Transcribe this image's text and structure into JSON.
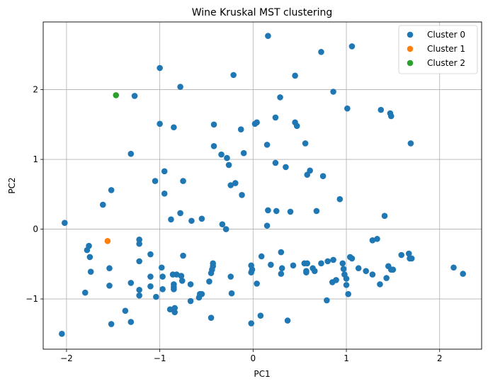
{
  "chart_data": {
    "type": "scatter",
    "title": "Wine Kruskal MST clustering",
    "xlabel": "PC1",
    "ylabel": "PC2",
    "xlim": [
      -2.25,
      2.45
    ],
    "ylim": [
      -1.72,
      2.97
    ],
    "xticks": [
      -2,
      -1,
      0,
      1,
      2
    ],
    "yticks": [
      -1,
      0,
      1,
      2
    ],
    "xtick_labels": [
      "−2",
      "−1",
      "0",
      "1",
      "2"
    ],
    "ytick_labels": [
      "−1",
      "0",
      "1",
      "2"
    ],
    "grid": true,
    "legend_position": "top-right",
    "series": [
      {
        "name": "Cluster 0",
        "color": "#1f77b4",
        "points": [
          [
            0.16,
            2.77
          ],
          [
            1.06,
            2.62
          ],
          [
            0.73,
            2.54
          ],
          [
            -1.0,
            2.31
          ],
          [
            -0.21,
            2.21
          ],
          [
            0.45,
            2.2
          ],
          [
            -0.78,
            2.04
          ],
          [
            -1.27,
            1.91
          ],
          [
            0.86,
            1.97
          ],
          [
            0.29,
            1.89
          ],
          [
            1.01,
            1.73
          ],
          [
            1.37,
            1.71
          ],
          [
            1.47,
            1.66
          ],
          [
            1.48,
            1.62
          ],
          [
            0.24,
            1.6
          ],
          [
            0.45,
            1.53
          ],
          [
            0.47,
            1.48
          ],
          [
            -1.0,
            1.51
          ],
          [
            -0.85,
            1.46
          ],
          [
            -0.42,
            1.5
          ],
          [
            0.02,
            1.51
          ],
          [
            0.04,
            1.53
          ],
          [
            -0.13,
            1.43
          ],
          [
            0.56,
            1.23
          ],
          [
            1.69,
            1.23
          ],
          [
            0.15,
            1.21
          ],
          [
            -0.42,
            1.19
          ],
          [
            -0.34,
            1.07
          ],
          [
            -0.28,
            1.02
          ],
          [
            -0.26,
            0.92
          ],
          [
            -0.1,
            1.09
          ],
          [
            -1.31,
            1.08
          ],
          [
            0.24,
            0.95
          ],
          [
            0.35,
            0.89
          ],
          [
            0.61,
            0.84
          ],
          [
            0.58,
            0.78
          ],
          [
            0.75,
            0.76
          ],
          [
            -0.95,
            0.83
          ],
          [
            -1.05,
            0.69
          ],
          [
            -0.75,
            0.69
          ],
          [
            -0.19,
            0.66
          ],
          [
            -0.24,
            0.63
          ],
          [
            -0.12,
            0.49
          ],
          [
            -0.95,
            0.51
          ],
          [
            -1.52,
            0.56
          ],
          [
            -1.61,
            0.35
          ],
          [
            0.93,
            0.43
          ],
          [
            0.16,
            0.27
          ],
          [
            0.25,
            0.26
          ],
          [
            0.4,
            0.25
          ],
          [
            0.68,
            0.26
          ],
          [
            1.41,
            0.19
          ],
          [
            -0.78,
            0.23
          ],
          [
            -0.88,
            0.14
          ],
          [
            -0.66,
            0.12
          ],
          [
            -0.55,
            0.15
          ],
          [
            -0.33,
            0.07
          ],
          [
            -0.29,
            0.0
          ],
          [
            0.15,
            0.05
          ],
          [
            -2.02,
            0.09
          ],
          [
            -1.22,
            -0.15
          ],
          [
            -1.22,
            -0.21
          ],
          [
            -1.76,
            -0.24
          ],
          [
            -1.78,
            -0.3
          ],
          [
            -1.75,
            -0.4
          ],
          [
            -1.1,
            -0.36
          ],
          [
            -0.75,
            -0.38
          ],
          [
            -0.43,
            -0.49
          ],
          [
            -0.43,
            -0.53
          ],
          [
            0.3,
            -0.33
          ],
          [
            0.09,
            -0.39
          ],
          [
            -0.02,
            -0.52
          ],
          [
            -0.01,
            -0.58
          ],
          [
            0.19,
            -0.51
          ],
          [
            0.31,
            -0.56
          ],
          [
            0.43,
            -0.52
          ],
          [
            0.55,
            -0.49
          ],
          [
            0.58,
            -0.49
          ],
          [
            0.64,
            -0.56
          ],
          [
            0.66,
            -0.6
          ],
          [
            0.73,
            -0.49
          ],
          [
            0.8,
            -0.46
          ],
          [
            0.86,
            -0.44
          ],
          [
            0.96,
            -0.49
          ],
          [
            1.04,
            -0.4
          ],
          [
            1.06,
            -0.42
          ],
          [
            1.13,
            -0.56
          ],
          [
            1.21,
            -0.6
          ],
          [
            1.28,
            -0.16
          ],
          [
            1.33,
            -0.14
          ],
          [
            1.28,
            -0.65
          ],
          [
            1.36,
            -0.79
          ],
          [
            1.43,
            -0.7
          ],
          [
            1.45,
            -0.53
          ],
          [
            1.48,
            -0.58
          ],
          [
            1.5,
            -0.58
          ],
          [
            1.59,
            -0.37
          ],
          [
            1.67,
            -0.35
          ],
          [
            1.68,
            -0.42
          ],
          [
            1.7,
            -0.42
          ],
          [
            2.15,
            -0.55
          ],
          [
            2.25,
            -0.64
          ],
          [
            -1.74,
            -0.61
          ],
          [
            -1.54,
            -0.56
          ],
          [
            -1.22,
            -0.46
          ],
          [
            -0.98,
            -0.55
          ],
          [
            -0.82,
            -0.65
          ],
          [
            -0.86,
            -0.65
          ],
          [
            -0.77,
            -0.67
          ],
          [
            -0.97,
            -0.68
          ],
          [
            -1.1,
            -0.68
          ],
          [
            -1.31,
            -0.77
          ],
          [
            -1.54,
            -0.81
          ],
          [
            -0.67,
            -0.79
          ],
          [
            -0.44,
            -0.58
          ],
          [
            -0.45,
            -0.63
          ],
          [
            -0.24,
            -0.68
          ],
          [
            -0.47,
            -0.75
          ],
          [
            -0.02,
            -0.62
          ],
          [
            0.04,
            -0.78
          ],
          [
            0.3,
            -0.64
          ],
          [
            0.57,
            -0.6
          ],
          [
            0.57,
            -0.62
          ],
          [
            0.85,
            -0.76
          ],
          [
            0.89,
            -0.73
          ],
          [
            0.97,
            -0.57
          ],
          [
            0.98,
            -0.65
          ],
          [
            1.0,
            -0.8
          ],
          [
            1.02,
            -0.93
          ],
          [
            1.0,
            -0.71
          ],
          [
            -1.8,
            -0.91
          ],
          [
            -1.22,
            -0.87
          ],
          [
            -1.22,
            -0.95
          ],
          [
            -1.1,
            -0.82
          ],
          [
            -0.97,
            -0.86
          ],
          [
            -0.85,
            -0.79
          ],
          [
            -0.85,
            -0.83
          ],
          [
            -0.85,
            -0.86
          ],
          [
            -0.76,
            -0.74
          ],
          [
            -0.57,
            -0.93
          ],
          [
            -0.55,
            -0.93
          ],
          [
            -0.58,
            -0.98
          ],
          [
            -0.67,
            -1.03
          ],
          [
            -1.04,
            -0.97
          ],
          [
            -1.31,
            -1.33
          ],
          [
            -1.37,
            -1.17
          ],
          [
            -0.89,
            -1.15
          ],
          [
            -0.84,
            -1.13
          ],
          [
            -0.84,
            -1.19
          ],
          [
            -0.45,
            -1.27
          ],
          [
            -0.23,
            -0.92
          ],
          [
            0.08,
            -1.24
          ],
          [
            -0.02,
            -1.35
          ],
          [
            0.37,
            -1.31
          ],
          [
            0.79,
            -1.02
          ],
          [
            -1.52,
            -1.36
          ],
          [
            -2.05,
            -1.5
          ]
        ]
      },
      {
        "name": "Cluster 1",
        "color": "#ff7f0e",
        "points": [
          [
            -1.56,
            -0.17
          ]
        ]
      },
      {
        "name": "Cluster 2",
        "color": "#2ca02c",
        "points": [
          [
            -1.47,
            1.92
          ]
        ]
      }
    ]
  }
}
